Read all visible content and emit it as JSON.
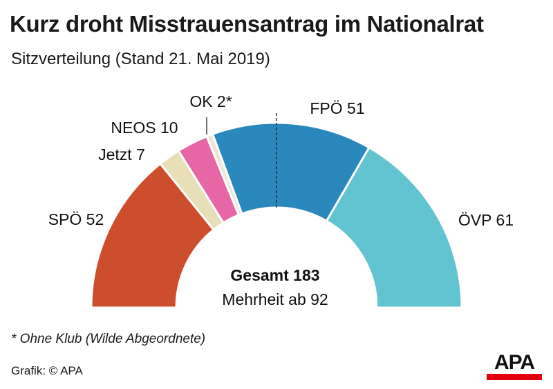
{
  "title": "Kurz droht Misstrauensantrag im Nationalrat",
  "subtitle": "Sitzverteilung (Stand 21. Mai 2019)",
  "chart_data": {
    "type": "pie",
    "variant": "half-donut",
    "series": [
      {
        "name": "SPÖ",
        "label": "SPÖ 52",
        "value": 52,
        "color": "#cd4e2c"
      },
      {
        "name": "Jetzt",
        "label": "Jetzt 7",
        "value": 7,
        "color": "#e8deb8"
      },
      {
        "name": "NEOS",
        "label": "NEOS 10",
        "value": 10,
        "color": "#e666a6"
      },
      {
        "name": "OK",
        "label": "OK 2*",
        "value": 2,
        "color": "#ece6d2"
      },
      {
        "name": "FPÖ",
        "label": "FPÖ 51",
        "value": 51,
        "color": "#2b88bd"
      },
      {
        "name": "ÖVP",
        "label": "ÖVP 61",
        "value": 61,
        "color": "#62c3d1"
      }
    ],
    "total": 183,
    "center_label_bold": "Gesamt 183",
    "center_label": "Mehrheit ab 92",
    "majority": 92
  },
  "footnote": "* Ohne Klub (Wilde Abgeordnete)",
  "source": "Grafik: © APA",
  "logo_text": "APA"
}
